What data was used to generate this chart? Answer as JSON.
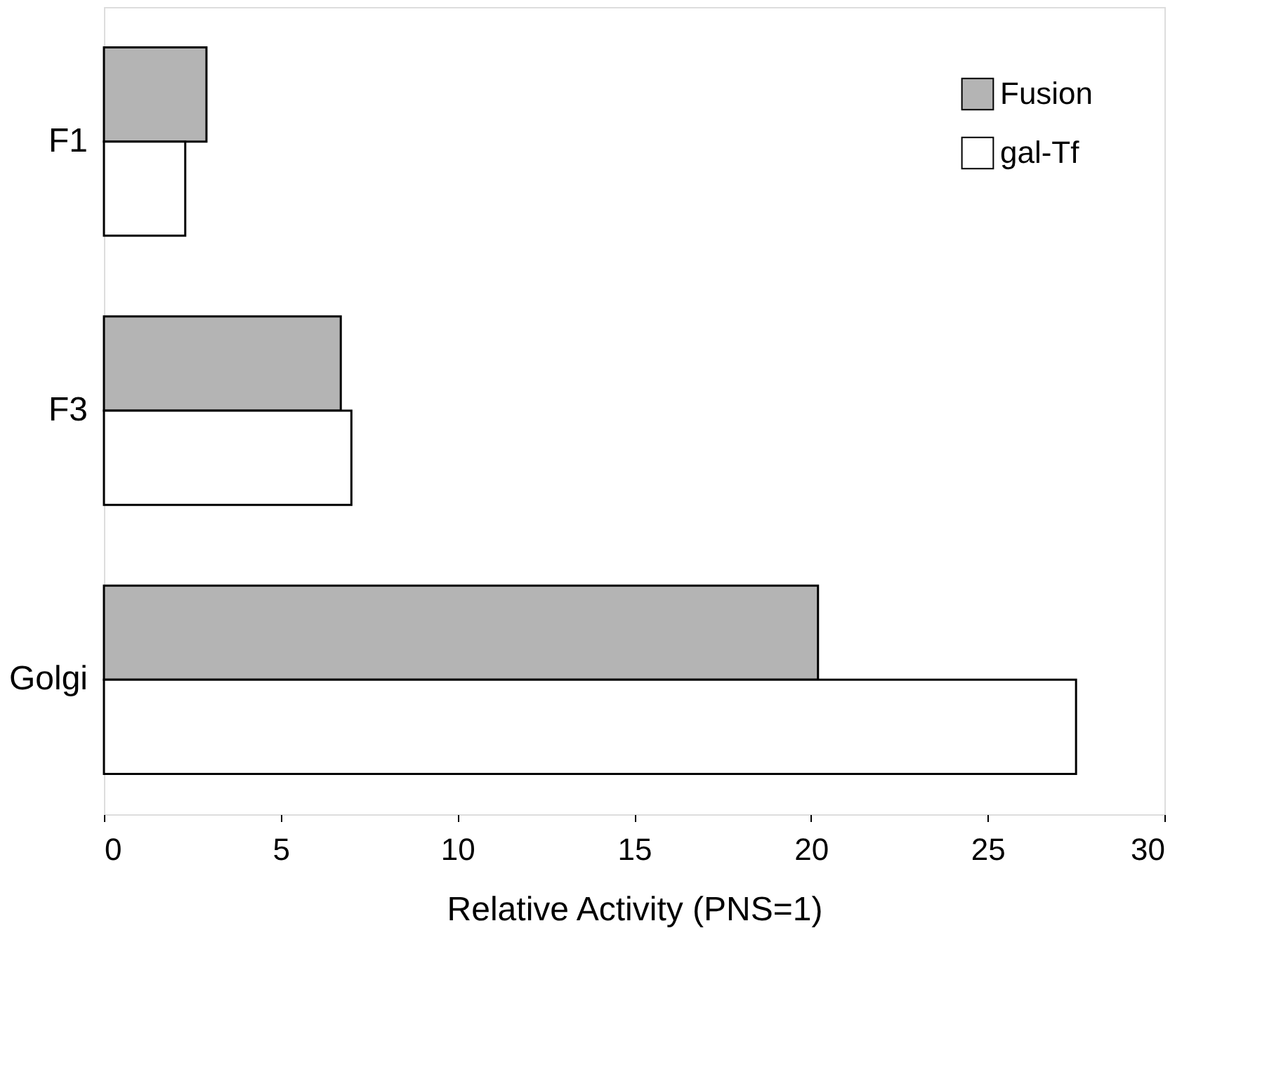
{
  "chart_data": {
    "type": "bar",
    "orientation": "horizontal",
    "categories": [
      "F1",
      "F3",
      "Golgi"
    ],
    "series": [
      {
        "name": "Fusion",
        "color": "#b4b4b4",
        "values": [
          2.9,
          6.7,
          20.2
        ]
      },
      {
        "name": "gal-Tf",
        "color": "#ffffff",
        "values": [
          2.3,
          7.0,
          27.5
        ]
      }
    ],
    "xlabel": "Relative Activity (PNS=1)",
    "xlim": [
      0,
      30
    ],
    "xticks": [
      0,
      5,
      10,
      15,
      20,
      25,
      30
    ],
    "grid": false,
    "legend": "top right"
  }
}
